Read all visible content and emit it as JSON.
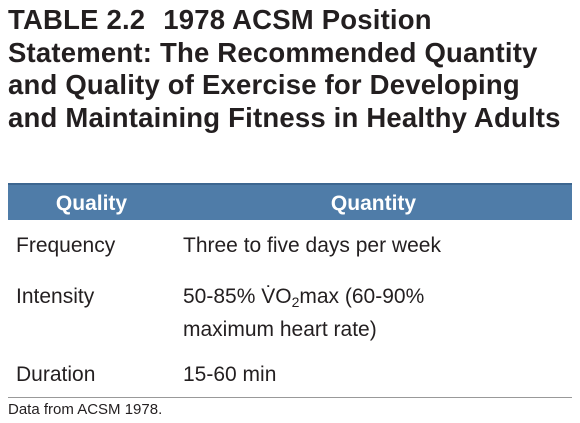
{
  "table": {
    "label": "TABLE 2.2",
    "title": "1978 ACSM Position Statement: The Recommended Quantity and Quality of Exercise for Developing and Maintaining Fitness in Healthy Adults",
    "header": [
      "Quality",
      "Quantity"
    ],
    "rows": [
      [
        "Frequency",
        "Three to five days per week"
      ],
      [
        "Intensity",
        {
          "before": "50-85% ",
          "symbol": "V̇O",
          "subscript": "2",
          "after": "max (60-90%",
          "next_line": "maximum heart rate)"
        }
      ],
      [
        "Duration",
        "15-60 min"
      ]
    ],
    "source": "Data from ACSM 1978."
  }
}
